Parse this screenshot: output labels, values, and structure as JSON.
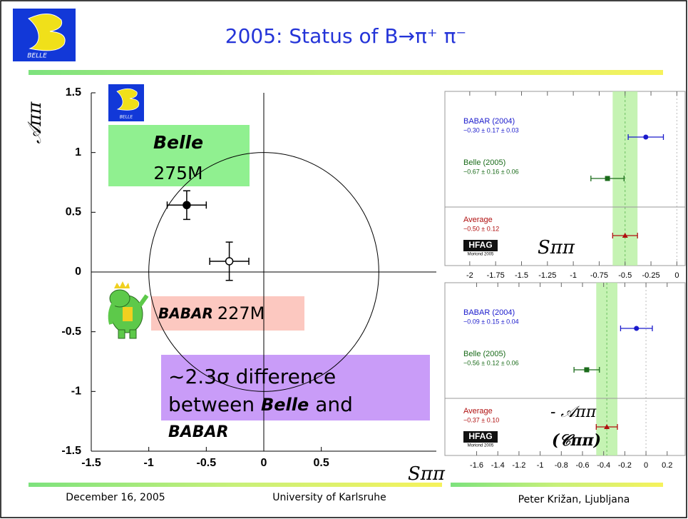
{
  "header": {
    "title": "2005: Status of B→π⁺ π⁻",
    "logo": "BELLE"
  },
  "footer": {
    "date": "December 16, 2005",
    "venue": "University of Karlsruhe",
    "author": "Peter Križan, Ljubljana"
  },
  "chart_data": [
    {
      "type": "scatter",
      "xlabel": "Sππ",
      "ylabel": "𝒜ππ",
      "xlim": [
        -1.5,
        1.5
      ],
      "ylim": [
        -1.5,
        1.5
      ],
      "xticks": [
        -1.5,
        -1,
        -0.5,
        0,
        0.5
      ],
      "yticks": [
        -1.5,
        -1,
        -0.5,
        0,
        0.5,
        1,
        1.5
      ],
      "unit_circle": true,
      "zero_lines": true,
      "series": [
        {
          "marker": "filled",
          "color": "#000000",
          "x": [
            -0.67
          ],
          "y": [
            0.56
          ],
          "xerr": [
            0.17
          ],
          "yerr": [
            0.12
          ]
        },
        {
          "marker": "open",
          "color": "#000000",
          "x": [
            -0.3
          ],
          "y": [
            0.09
          ],
          "xerr": [
            0.17
          ],
          "yerr": [
            0.16
          ]
        }
      ],
      "annotations": [
        {
          "label": "Belle",
          "note": "275M",
          "color": "#90f090"
        },
        {
          "label": "BABAR",
          "note": "227M",
          "color": "#fcc8c0"
        },
        {
          "lines": [
            "~2.3σ difference",
            "between ",
            "Belle",
            " and",
            "BABAR"
          ],
          "color": "#c99cf8"
        }
      ]
    },
    {
      "type": "errorbar",
      "xlabel": "Sππ",
      "badge": "HFAG",
      "badge_sub": "Moriond 2005",
      "xlim": [
        -2.24,
        0.08
      ],
      "xticks": [
        -2,
        -1.75,
        -1.5,
        -1.25,
        -1,
        -0.75,
        -0.5,
        -0.25,
        0
      ],
      "categories": [
        "BABAR (2004)",
        "Belle (2005)",
        "Average"
      ],
      "values": [
        -0.3,
        -0.67,
        -0.5
      ],
      "errors": [
        0.17,
        0.16,
        0.12
      ],
      "value_labels": [
        "−0.30 ± 0.17 ± 0.03",
        "−0.67 ± 0.16 ± 0.06",
        "−0.50 ± 0.12"
      ],
      "colors": [
        "#1a1acc",
        "#1a6b1a",
        "#b01010"
      ],
      "markers": [
        "circle",
        "square",
        "triangle"
      ]
    },
    {
      "type": "errorbar",
      "xlabel": "- 𝒜ππ",
      "xlabel2": "(𝒞ππ)",
      "badge": "HFAG",
      "badge_sub": "Moriond 2005",
      "xlim": [
        -1.9,
        0.37
      ],
      "xticks": [
        -1.6,
        -1.4,
        -1.2,
        -1,
        -0.8,
        -0.6,
        -0.4,
        -0.2,
        0,
        0.2
      ],
      "categories": [
        "BABAR (2004)",
        "Belle (2005)",
        "Average"
      ],
      "values": [
        -0.09,
        -0.56,
        -0.37
      ],
      "errors": [
        0.15,
        0.12,
        0.1
      ],
      "value_labels": [
        "−0.09 ± 0.15 ± 0.04",
        "−0.56 ± 0.12 ± 0.06",
        "−0.37 ± 0.10"
      ],
      "colors": [
        "#1a1acc",
        "#1a6b1a",
        "#b01010"
      ],
      "markers": [
        "circle",
        "square",
        "triangle"
      ]
    }
  ]
}
